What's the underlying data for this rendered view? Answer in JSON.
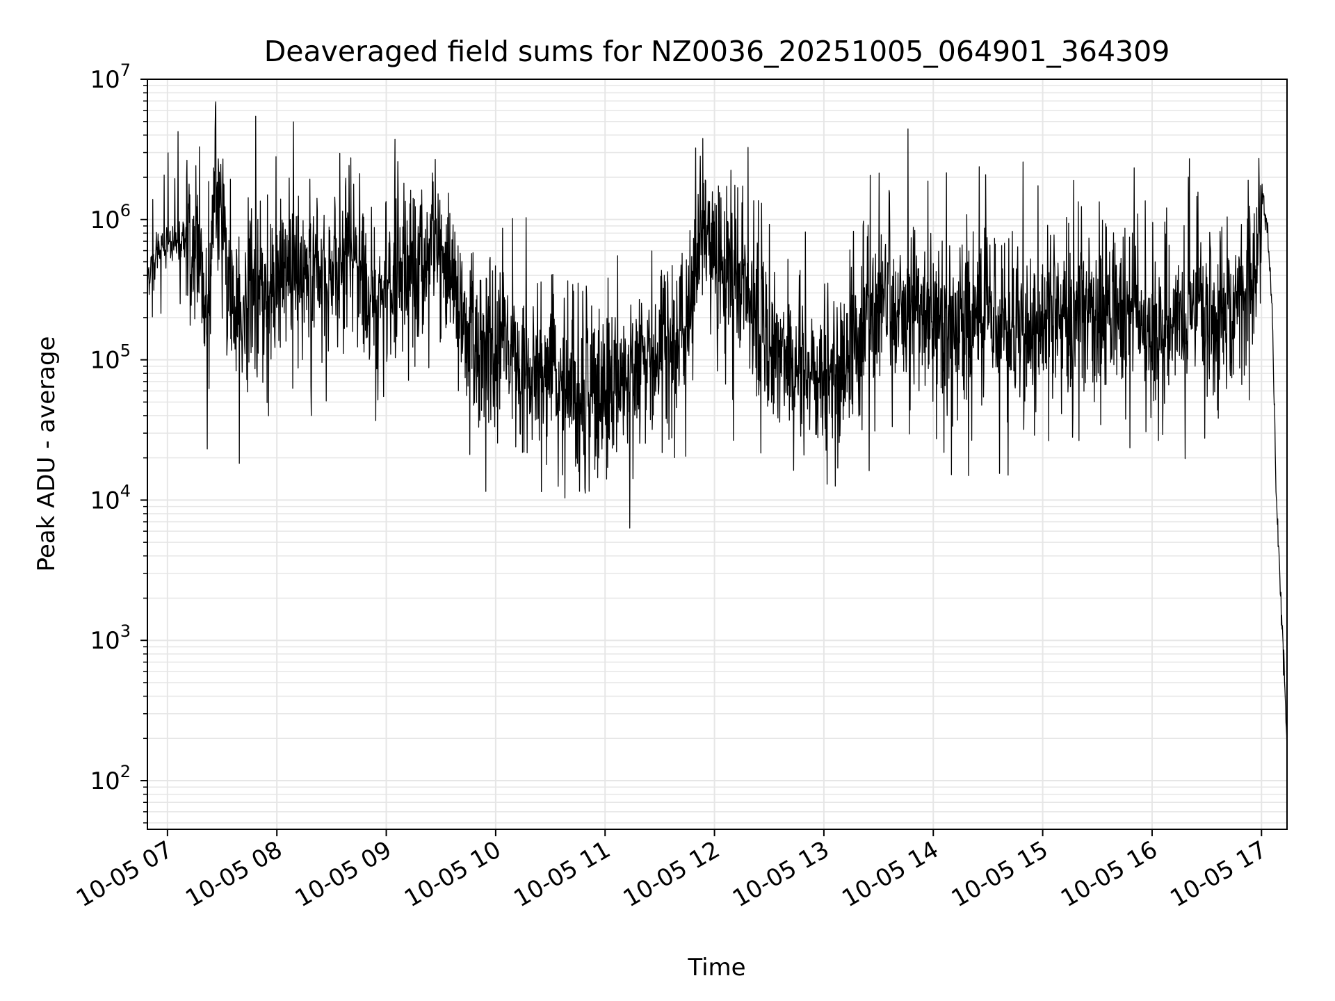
{
  "chart_data": {
    "type": "line",
    "title": "Deaveraged field sums for NZ0036_20251005_064901_364309",
    "xlabel": "Time",
    "ylabel": "Peak ADU - average",
    "yscale": "log",
    "ylim": [
      45,
      10000000
    ],
    "xlim": [
      "2025-10-05 06:49",
      "2025-10-05 17:14"
    ],
    "grid": true,
    "legend": "none",
    "colors": {
      "line": "#000000",
      "grid": "#e6e6e6"
    },
    "x_ticks": [
      "10-05 07",
      "10-05 08",
      "10-05 09",
      "10-05 10",
      "10-05 11",
      "10-05 12",
      "10-05 13",
      "10-05 14",
      "10-05 15",
      "10-05 16",
      "10-05 17"
    ],
    "y_ticks": [
      {
        "base": "10",
        "exp": "2",
        "value": 100
      },
      {
        "base": "10",
        "exp": "3",
        "value": 1000
      },
      {
        "base": "10",
        "exp": "4",
        "value": 10000
      },
      {
        "base": "10",
        "exp": "5",
        "value": 100000
      },
      {
        "base": "10",
        "exp": "6",
        "value": 1000000
      },
      {
        "base": "10",
        "exp": "7",
        "value": 10000000
      }
    ],
    "series": [
      {
        "x": [
          "2025-10-05 06:49",
          "2025-10-05 06:55",
          "2025-10-05 07:02",
          "2025-10-05 07:08",
          "2025-10-05 07:12",
          "2025-10-05 07:18",
          "2025-10-05 07:22",
          "2025-10-05 07:26",
          "2025-10-05 07:30",
          "2025-10-05 07:35",
          "2025-10-05 07:40",
          "2025-10-05 07:45",
          "2025-10-05 07:50",
          "2025-10-05 08:00",
          "2025-10-05 08:10",
          "2025-10-05 08:20",
          "2025-10-05 08:30",
          "2025-10-05 08:40",
          "2025-10-05 08:50",
          "2025-10-05 09:00",
          "2025-10-05 09:10",
          "2025-10-05 09:20",
          "2025-10-05 09:25",
          "2025-10-05 09:35",
          "2025-10-05 09:45",
          "2025-10-05 10:00",
          "2025-10-05 10:15",
          "2025-10-05 10:30",
          "2025-10-05 10:45",
          "2025-10-05 11:00",
          "2025-10-05 11:15",
          "2025-10-05 11:30",
          "2025-10-05 11:40",
          "2025-10-05 11:48",
          "2025-10-05 11:52",
          "2025-10-05 11:55",
          "2025-10-05 12:00",
          "2025-10-05 12:10",
          "2025-10-05 12:20",
          "2025-10-05 12:30",
          "2025-10-05 12:40",
          "2025-10-05 12:50",
          "2025-10-05 13:00",
          "2025-10-05 13:10",
          "2025-10-05 13:20",
          "2025-10-05 13:30",
          "2025-10-05 13:45",
          "2025-10-05 14:00",
          "2025-10-05 14:15",
          "2025-10-05 14:30",
          "2025-10-05 14:45",
          "2025-10-05 15:00",
          "2025-10-05 15:15",
          "2025-10-05 15:30",
          "2025-10-05 15:45",
          "2025-10-05 16:00",
          "2025-10-05 16:15",
          "2025-10-05 16:30",
          "2025-10-05 16:45",
          "2025-10-05 16:55",
          "2025-10-05 17:00",
          "2025-10-05 17:03",
          "2025-10-05 17:06",
          "2025-10-05 17:08",
          "2025-10-05 17:10",
          "2025-10-05 17:12",
          "2025-10-05 17:14"
        ],
        "y": [
          400000,
          600000,
          700000,
          750000,
          800000,
          500000,
          200000,
          1500000,
          900000,
          300000,
          150000,
          400000,
          200000,
          350000,
          400000,
          450000,
          300000,
          600000,
          300000,
          350000,
          400000,
          500000,
          900000,
          300000,
          150000,
          100000,
          90000,
          70000,
          60000,
          55000,
          70000,
          100000,
          150000,
          250000,
          900000,
          1200000,
          500000,
          350000,
          300000,
          150000,
          100000,
          80000,
          70000,
          80000,
          150000,
          200000,
          250000,
          200000,
          180000,
          250000,
          200000,
          180000,
          200000,
          220000,
          200000,
          180000,
          200000,
          220000,
          250000,
          400000,
          1500000,
          900000,
          200000,
          10000,
          3000,
          800,
          180
        ]
      }
    ]
  }
}
